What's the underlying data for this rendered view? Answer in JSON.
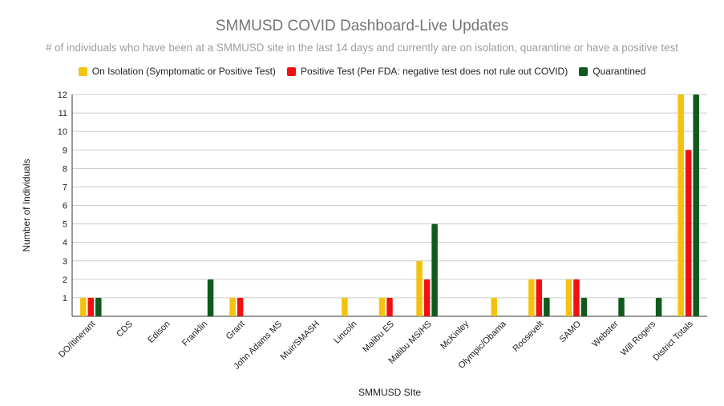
{
  "chart_data": {
    "type": "bar",
    "title": "SMMUSD COVID Dashboard-Live Updates",
    "subtitle": "# of individuals who have been at a SMMUSD site in the last 14 days and currently are on isolation, quarantine or have a positive test",
    "xlabel": "SMMUSD SIte",
    "ylabel": "Number of Individuals",
    "ylim": [
      0,
      12
    ],
    "yticks": [
      1,
      2,
      3,
      4,
      5,
      6,
      7,
      8,
      9,
      10,
      11,
      12
    ],
    "grid": true,
    "legend_position": "top",
    "categories": [
      "DO/Itinerant",
      "CDS",
      "Edison",
      "Franklin",
      "Grant",
      "John Adams MS",
      "Muir/SMASH",
      "Lincoln",
      "Malibu ES",
      "Malibu MS/HS",
      "McKinley",
      "Olympic/Obama",
      "Roosevelt",
      "SAMO",
      "Webster",
      "Will Rogers",
      "District Totals"
    ],
    "series": [
      {
        "name": "On Isolation (Symptomatic or Positive Test)",
        "color": "#f4c20d",
        "values": [
          1,
          0,
          0,
          0,
          1,
          0,
          0,
          1,
          1,
          3,
          0,
          1,
          2,
          2,
          0,
          0,
          12
        ]
      },
      {
        "name": "Positive Test (Per FDA: negative test does not rule out COVID)",
        "color": "#ee1111",
        "values": [
          1,
          0,
          0,
          0,
          1,
          0,
          0,
          0,
          1,
          2,
          0,
          0,
          2,
          2,
          0,
          0,
          9
        ]
      },
      {
        "name": "Quarantined",
        "color": "#0f5a1c",
        "values": [
          1,
          0,
          0,
          2,
          0,
          0,
          0,
          0,
          0,
          5,
          0,
          0,
          1,
          1,
          1,
          1,
          12
        ]
      }
    ]
  }
}
